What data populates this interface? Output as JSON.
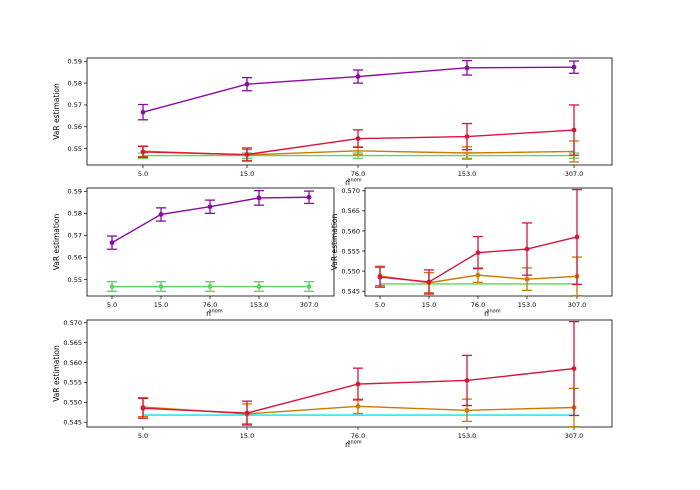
{
  "chart_data": [
    {
      "type": "line",
      "panel": "top",
      "categories": [
        "5.0",
        "15.0",
        "76.0",
        "153.0",
        "307.0"
      ],
      "xlabel": "n",
      "xlabel_sup": "anom",
      "ylabel": "VaR estimation",
      "ylim": [
        0.5425,
        0.5915
      ],
      "yticks": [
        "0.55",
        "0.56",
        "0.57",
        "0.58",
        "0.59"
      ],
      "grid": false,
      "series": [
        {
          "color": "#8b0aa5",
          "values": [
            0.5667,
            0.5795,
            0.583,
            0.587,
            0.5873
          ],
          "err": [
            0.0035,
            0.003,
            0.003,
            0.0033,
            0.0028
          ],
          "marker": true
        },
        {
          "color": "#dc143c",
          "values": [
            0.5485,
            0.5473,
            0.5546,
            0.5555,
            0.5585
          ],
          "err": [
            0.0025,
            0.003,
            0.004,
            0.006,
            0.0115
          ],
          "marker": true
        },
        {
          "color": "#cc7a00",
          "values": [
            0.5488,
            0.5471,
            0.549,
            0.548,
            0.5487
          ],
          "err": [
            0.0024,
            0.0025,
            0.0018,
            0.0028,
            0.0048
          ],
          "marker": false
        },
        {
          "color": "#5fd35f",
          "values": [
            0.5468,
            0.5468,
            0.5468,
            0.5468,
            0.5468
          ],
          "err": [
            0.0012,
            0.0012,
            0.0012,
            0.0012,
            0.0012
          ],
          "marker": false
        }
      ]
    },
    {
      "type": "line",
      "panel": "middle-left",
      "categories": [
        "5.0",
        "15.0",
        "76.0",
        "153.0",
        "307.0"
      ],
      "xlabel": "n",
      "xlabel_sup": "anom",
      "ylabel": "VaR estimation",
      "ylim": [
        0.5425,
        0.5915
      ],
      "yticks": [
        "0.55",
        "0.56",
        "0.57",
        "0.58",
        "0.59"
      ],
      "grid": false,
      "series": [
        {
          "color": "#8b0aa5",
          "values": [
            0.5667,
            0.5795,
            0.583,
            0.587,
            0.5873
          ],
          "err": [
            0.003,
            0.003,
            0.003,
            0.0033,
            0.0028
          ],
          "marker": true
        },
        {
          "color": "#5fd35f",
          "values": [
            0.5468,
            0.5468,
            0.5468,
            0.5468,
            0.5468
          ],
          "err": [
            0.0022,
            0.0022,
            0.0022,
            0.0022,
            0.0022
          ],
          "marker": true
        }
      ]
    },
    {
      "type": "line",
      "panel": "middle-right",
      "categories": [
        "5.0",
        "15.0",
        "76.0",
        "153.0",
        "307.0"
      ],
      "xlabel": "n",
      "xlabel_sup": "anom",
      "ylabel": "VaR estimation",
      "ylim": [
        0.5438,
        0.5707
      ],
      "yticks": [
        "0.545",
        "0.550",
        "0.555",
        "0.560",
        "0.565",
        "0.570"
      ],
      "grid": false,
      "series": [
        {
          "color": "#dc143c",
          "values": [
            0.5485,
            0.5473,
            0.5546,
            0.5555,
            0.5585
          ],
          "err": [
            0.0025,
            0.003,
            0.004,
            0.0065,
            0.0118
          ],
          "marker": true
        },
        {
          "color": "#cc7a00",
          "values": [
            0.5488,
            0.5471,
            0.549,
            0.548,
            0.5487
          ],
          "err": [
            0.0024,
            0.0025,
            0.0018,
            0.0028,
            0.0048
          ],
          "marker": true
        },
        {
          "color": "#5fd35f",
          "values": [
            0.5468,
            0.5468,
            0.5468,
            0.5468,
            0.5468
          ],
          "err": [
            0.0,
            0.0,
            0.0,
            0.0,
            0.0
          ],
          "marker": false
        }
      ]
    },
    {
      "type": "line",
      "panel": "bottom",
      "categories": [
        "5.0",
        "15.0",
        "76.0",
        "153.0",
        "307.0"
      ],
      "xlabel": "n",
      "xlabel_sup": "anom",
      "ylabel": "VaR estimation",
      "ylim": [
        0.5438,
        0.5707
      ],
      "yticks": [
        "0.545",
        "0.550",
        "0.555",
        "0.560",
        "0.565",
        "0.570"
      ],
      "grid": false,
      "series": [
        {
          "color": "#dc143c",
          "values": [
            0.5485,
            0.5473,
            0.5546,
            0.5555,
            0.5585
          ],
          "err": [
            0.0025,
            0.003,
            0.004,
            0.0063,
            0.0118
          ],
          "marker": true
        },
        {
          "color": "#cc7a00",
          "values": [
            0.5488,
            0.5471,
            0.549,
            0.548,
            0.5487
          ],
          "err": [
            0.0024,
            0.0025,
            0.0018,
            0.0028,
            0.0048
          ],
          "marker": true
        },
        {
          "color": "#00e5ee",
          "values": [
            0.5468,
            0.5468,
            0.5468,
            0.5468,
            0.5468
          ],
          "err": [
            0.0,
            0.0,
            0.0,
            0.0,
            0.0
          ],
          "marker": false
        }
      ]
    }
  ]
}
